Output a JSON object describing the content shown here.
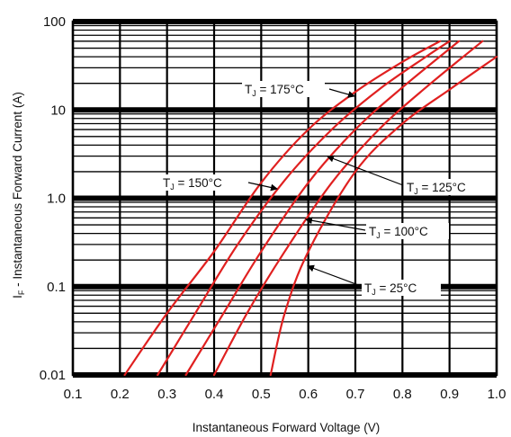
{
  "chart_data": {
    "type": "line",
    "title": "",
    "xlabel": "Instantaneous Forward Voltage (V)",
    "ylabel": "I F - Instantaneous Forward Current  (A)",
    "ylabel_main": "I",
    "ylabel_sub": "F",
    "ylabel_rest": " - Instantaneous Forward Current  (A)",
    "xlim": [
      0.1,
      1.0
    ],
    "ylim": [
      0.01,
      100
    ],
    "yscale": "log",
    "grid": true,
    "x_ticks": [
      "0.1",
      "0.2",
      "0.3",
      "0.4",
      "0.5",
      "0.6",
      "0.7",
      "0.8",
      "0.9",
      "1.0"
    ],
    "y_ticks": [
      "0.01",
      "0.1",
      "1.0",
      "10",
      "100"
    ],
    "series": [
      {
        "name": "TJ = 175°C",
        "color": "#e02020",
        "x": [
          0.21,
          0.3,
          0.4,
          0.5,
          0.6,
          0.7,
          0.8,
          0.88
        ],
        "y": [
          0.01,
          0.05,
          0.25,
          1.5,
          6.0,
          16,
          35,
          60
        ]
      },
      {
        "name": "TJ = 150°C",
        "color": "#e02020",
        "x": [
          0.28,
          0.36,
          0.45,
          0.55,
          0.65,
          0.75,
          0.85,
          0.9
        ],
        "y": [
          0.01,
          0.05,
          0.3,
          1.6,
          6.0,
          17,
          40,
          60
        ]
      },
      {
        "name": "TJ = 125°C",
        "color": "#e02020",
        "x": [
          0.34,
          0.42,
          0.5,
          0.6,
          0.7,
          0.8,
          0.92
        ],
        "y": [
          0.01,
          0.05,
          0.25,
          1.5,
          6.0,
          18,
          60
        ]
      },
      {
        "name": "TJ = 100°C",
        "color": "#e02020",
        "x": [
          0.4,
          0.47,
          0.55,
          0.65,
          0.75,
          0.85,
          0.97
        ],
        "y": [
          0.01,
          0.05,
          0.25,
          1.5,
          6.0,
          18,
          60
        ]
      },
      {
        "name": "TJ = 25°C",
        "color": "#e02020",
        "x": [
          0.52,
          0.55,
          0.6,
          0.7,
          0.8,
          0.9,
          1.0
        ],
        "y": [
          0.01,
          0.05,
          0.25,
          2.0,
          7.0,
          17,
          40
        ]
      }
    ],
    "annotations": [
      {
        "main": "T",
        "sub": "J",
        "rest": " = 175°C"
      },
      {
        "main": "T",
        "sub": "J",
        "rest": " = 150°C"
      },
      {
        "main": "T",
        "sub": "J",
        "rest": " = 125°C"
      },
      {
        "main": "T",
        "sub": "J",
        "rest": " = 100°C"
      },
      {
        "main": "T",
        "sub": "J",
        "rest": " = 25°C"
      }
    ]
  }
}
